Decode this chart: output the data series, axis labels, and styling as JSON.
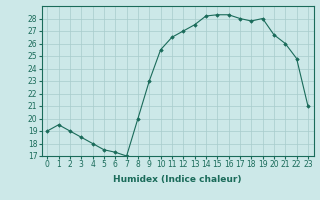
{
  "title": "",
  "xlabel": "Humidex (Indice chaleur)",
  "x": [
    0,
    1,
    2,
    3,
    4,
    5,
    6,
    7,
    8,
    9,
    10,
    11,
    12,
    13,
    14,
    15,
    16,
    17,
    18,
    19,
    20,
    21,
    22,
    23
  ],
  "y": [
    19,
    19.5,
    19,
    18.5,
    18,
    17.5,
    17.3,
    17,
    20,
    23,
    25.5,
    26.5,
    27,
    27.5,
    28.2,
    28.3,
    28.3,
    28,
    27.8,
    28,
    26.7,
    26,
    24.8,
    21
  ],
  "line_color": "#1a6b5a",
  "bg_color": "#cce8e8",
  "grid_color": "#a8cccc",
  "ylim": [
    17,
    29
  ],
  "yticks": [
    17,
    18,
    19,
    20,
    21,
    22,
    23,
    24,
    25,
    26,
    27,
    28
  ],
  "xlim": [
    -0.5,
    23.5
  ],
  "xticks": [
    0,
    1,
    2,
    3,
    4,
    5,
    6,
    7,
    8,
    9,
    10,
    11,
    12,
    13,
    14,
    15,
    16,
    17,
    18,
    19,
    20,
    21,
    22,
    23
  ],
  "tick_fontsize": 5.5,
  "xlabel_fontsize": 6.5
}
